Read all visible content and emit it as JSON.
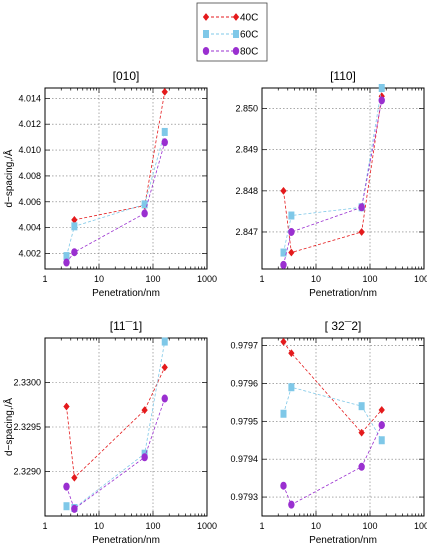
{
  "chart_data": {
    "type": "scatter",
    "legend": {
      "placement": "top-center",
      "entries": [
        {
          "name": "40C",
          "color": "#e41a1c",
          "marker": "diamond"
        },
        {
          "name": "60C",
          "color": "#7fc8e8",
          "marker": "square"
        },
        {
          "name": "80C",
          "color": "#9a2fd0",
          "marker": "circle"
        }
      ]
    },
    "x_scale": "log",
    "xlim": [
      1,
      1000
    ],
    "x_ticks": [
      1,
      10,
      100,
      1000
    ],
    "x_tick_labels": [
      "1",
      "10",
      "100",
      "1000"
    ],
    "grid": true,
    "panels": [
      {
        "title": "[010]",
        "xlabel": "Penetration/nm",
        "ylabel": "d−spacing,/Å",
        "ylim": [
          4.0008,
          4.0148
        ],
        "y_ticks": [
          4.002,
          4.004,
          4.006,
          4.008,
          4.01,
          4.012,
          4.014
        ],
        "y_tick_labels": [
          "4.002",
          "4.004",
          "4.006",
          "4.008",
          "4.010",
          "4.012",
          "4.014"
        ],
        "series": [
          {
            "name": "40C",
            "x": [
              3.5,
              70,
              165
            ],
            "y": [
              4.0046,
              4.0057,
              4.0145
            ]
          },
          {
            "name": "60C",
            "x": [
              2.5,
              3.5,
              70,
              165
            ],
            "y": [
              4.0018,
              4.0041,
              4.0058,
              4.0114
            ]
          },
          {
            "name": "80C",
            "x": [
              2.5,
              3.5,
              70,
              165
            ],
            "y": [
              4.0013,
              4.0021,
              4.0051,
              4.0106
            ]
          }
        ]
      },
      {
        "title": "[110]",
        "xlabel": "Penetration/nm",
        "ylabel": "",
        "ylim": [
          2.8461,
          2.8505
        ],
        "y_ticks": [
          2.847,
          2.848,
          2.849,
          2.85
        ],
        "y_tick_labels": [
          "2.847",
          "2.848",
          "2.849",
          "2.850"
        ],
        "series": [
          {
            "name": "40C",
            "x": [
              2.5,
              3.5,
              70,
              165
            ],
            "y": [
              2.848,
              2.8465,
              2.847,
              2.8503
            ]
          },
          {
            "name": "60C",
            "x": [
              2.5,
              3.5,
              70,
              165
            ],
            "y": [
              2.8465,
              2.8474,
              2.8476,
              2.8505
            ]
          },
          {
            "name": "80C",
            "x": [
              2.5,
              3.5,
              70,
              165
            ],
            "y": [
              2.8462,
              2.847,
              2.8476,
              2.8502
            ]
          }
        ]
      },
      {
        "title": "[11¯1]",
        "xlabel": "Penetration/nm",
        "ylabel": "d−spacing,/Å",
        "ylim": [
          2.3285,
          2.3305
        ],
        "y_ticks": [
          2.329,
          2.3295,
          2.33
        ],
        "y_tick_labels": [
          "2.3290",
          "2.3295",
          "2.3300"
        ],
        "series": [
          {
            "name": "40C",
            "x": [
              2.5,
              3.5,
              70,
              165
            ],
            "y": [
              2.32973,
              2.32893,
              2.32969,
              2.33017
            ]
          },
          {
            "name": "60C",
            "x": [
              2.5,
              3.5,
              70,
              165
            ],
            "y": [
              2.32861,
              2.32859,
              2.3292,
              2.33046
            ]
          },
          {
            "name": "80C",
            "x": [
              2.5,
              3.5,
              70,
              165
            ],
            "y": [
              2.32883,
              2.32858,
              2.32916,
              2.32982
            ]
          }
        ]
      },
      {
        "title": "[ 32¯2]",
        "xlabel": "Penetration/nm",
        "ylabel": "",
        "ylim": [
          0.97925,
          0.97972
        ],
        "y_ticks": [
          0.9793,
          0.9794,
          0.9795,
          0.9796,
          0.9797
        ],
        "y_tick_labels": [
          "0.9793",
          "0.9794",
          "0.9795",
          "0.9796",
          "0.9797"
        ],
        "series": [
          {
            "name": "40C",
            "x": [
              2.5,
              3.5,
              70,
              165
            ],
            "y": [
              0.97971,
              0.97968,
              0.97947,
              0.97953
            ]
          },
          {
            "name": "60C",
            "x": [
              2.5,
              3.5,
              70,
              165
            ],
            "y": [
              0.97952,
              0.97959,
              0.97954,
              0.97945
            ]
          },
          {
            "name": "80C",
            "x": [
              2.5,
              3.5,
              70,
              165
            ],
            "y": [
              0.97933,
              0.97928,
              0.97938,
              0.97949
            ]
          }
        ]
      }
    ]
  }
}
